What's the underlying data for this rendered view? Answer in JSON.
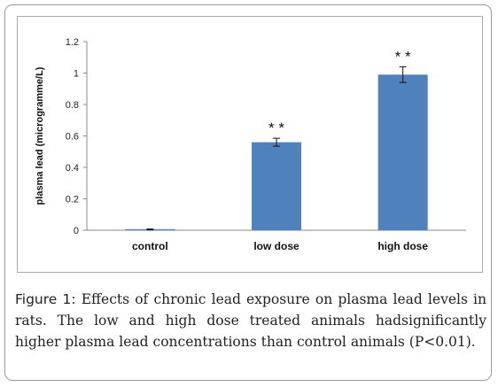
{
  "chart_data": {
    "type": "bar",
    "categories": [
      "control",
      "low dose",
      "high dose"
    ],
    "values": [
      0.005,
      0.56,
      0.99
    ],
    "errors": [
      0.003,
      0.025,
      0.05
    ],
    "annotations": [
      "",
      "* *",
      "* *"
    ],
    "xlabel": "",
    "ylabel": "plasma lead (microgramme/L)",
    "ylim": [
      0,
      1.2
    ],
    "yticks": [
      "0",
      "0.2",
      "0.4",
      "0.6",
      "0.8",
      "1",
      "1.2"
    ],
    "grid": false,
    "bar_color": "#4f81bd"
  },
  "caption": {
    "label": "Figure 1:",
    "text": "Effects of chronic lead exposure on plasma lead levels in rats. The low and high dose treated animals hadsignificantly higher plasma lead concentrations than control animals (P<0.01)."
  }
}
